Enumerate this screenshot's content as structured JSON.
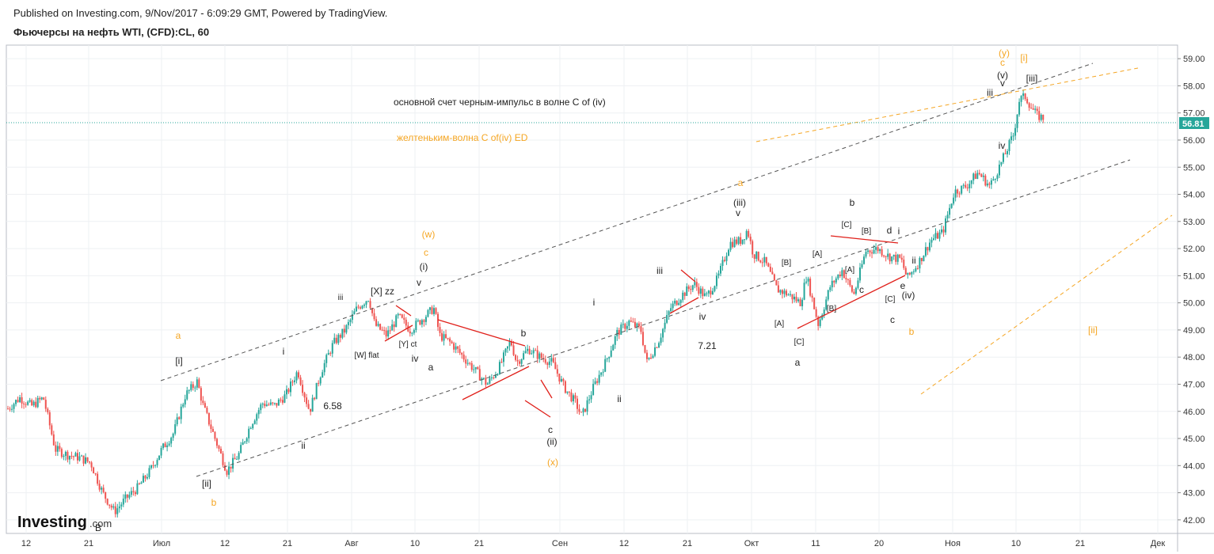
{
  "header": {
    "published": "Published on Investing.com, 9/Nov/2017 - 6:09:29 GMT, Powered by TradingView.",
    "symbol": "Фьючерсы на нефть WTI, (CFD):CL, 60"
  },
  "logo": {
    "word": "Investing",
    "suffix": ".com"
  },
  "colors": {
    "up_candle": "#26a69a",
    "down_candle": "#ef5350",
    "wave_orange": "#f5a623",
    "channel_dash": "#555555",
    "red_line": "#e0201a",
    "price_label_bg": "#26a69a",
    "grid": "#eef0f3"
  },
  "chart_data": {
    "type": "candlestick",
    "y_axis": {
      "min": 41.5,
      "max": 59.5,
      "ticks": [
        "42.00",
        "43.00",
        "44.00",
        "45.00",
        "46.00",
        "47.00",
        "48.00",
        "49.00",
        "50.00",
        "51.00",
        "52.00",
        "53.00",
        "54.00",
        "55.00",
        "56.00",
        "57.00",
        "58.00",
        "59.00"
      ]
    },
    "x_axis": {
      "ticks": [
        "12",
        "21",
        "Июл",
        "12",
        "21",
        "Авг",
        "10",
        "21",
        "Сен",
        "12",
        "21",
        "Окт",
        "11",
        "20",
        "Ноя",
        "10",
        "21",
        "Дек"
      ]
    },
    "last_price": "56.81",
    "price_path": [
      [
        0,
        46.1
      ],
      [
        2,
        46.5
      ],
      [
        4,
        46.2
      ],
      [
        6,
        46.5
      ],
      [
        8,
        44.6
      ],
      [
        10,
        44.4
      ],
      [
        12,
        44.3
      ],
      [
        14,
        44.1
      ],
      [
        16,
        43.0
      ],
      [
        18,
        42.3
      ],
      [
        20,
        42.8
      ],
      [
        22,
        43.2
      ],
      [
        24,
        43.8
      ],
      [
        26,
        44.6
      ],
      [
        28,
        45.2
      ],
      [
        30,
        46.6
      ],
      [
        32,
        47.1
      ],
      [
        33,
        46.2
      ],
      [
        35,
        45.0
      ],
      [
        37,
        43.8
      ],
      [
        39,
        44.4
      ],
      [
        41,
        45.5
      ],
      [
        43,
        46.3
      ],
      [
        45,
        46.2
      ],
      [
        47,
        46.6
      ],
      [
        49,
        47.5
      ],
      [
        50,
        46.7
      ],
      [
        51,
        46.0
      ],
      [
        53,
        47.5
      ],
      [
        55,
        48.5
      ],
      [
        57,
        49.0
      ],
      [
        59,
        49.8
      ],
      [
        61,
        50.2
      ],
      [
        62,
        49.2
      ],
      [
        64,
        48.8
      ],
      [
        66,
        49.5
      ],
      [
        68,
        49.0
      ],
      [
        70,
        49.4
      ],
      [
        72,
        49.8
      ],
      [
        73,
        48.8
      ],
      [
        75,
        48.5
      ],
      [
        77,
        48.0
      ],
      [
        79,
        47.5
      ],
      [
        81,
        47.0
      ],
      [
        83,
        47.6
      ],
      [
        85,
        48.6
      ],
      [
        86,
        47.8
      ],
      [
        88,
        48.3
      ],
      [
        90,
        48.0
      ],
      [
        92,
        47.8
      ],
      [
        94,
        46.9
      ],
      [
        96,
        46.3
      ],
      [
        97,
        45.8
      ],
      [
        99,
        46.9
      ],
      [
        101,
        47.8
      ],
      [
        103,
        48.9
      ],
      [
        105,
        49.3
      ],
      [
        107,
        49.0
      ],
      [
        108,
        47.8
      ],
      [
        110,
        48.6
      ],
      [
        112,
        49.8
      ],
      [
        114,
        50.3
      ],
      [
        116,
        50.7
      ],
      [
        118,
        50.2
      ],
      [
        120,
        50.9
      ],
      [
        122,
        52.2
      ],
      [
        124,
        52.3
      ],
      [
        125,
        52.7
      ],
      [
        126,
        51.8
      ],
      [
        128,
        51.5
      ],
      [
        130,
        50.5
      ],
      [
        132,
        50.3
      ],
      [
        134,
        50.0
      ],
      [
        135,
        51.0
      ],
      [
        137,
        49.2
      ],
      [
        139,
        50.6
      ],
      [
        141,
        51.2
      ],
      [
        143,
        50.3
      ],
      [
        145,
        51.9
      ],
      [
        147,
        52.0
      ],
      [
        149,
        51.7
      ],
      [
        151,
        51.6
      ],
      [
        152,
        50.9
      ],
      [
        154,
        51.5
      ],
      [
        156,
        52.3
      ],
      [
        158,
        52.6
      ],
      [
        160,
        54.1
      ],
      [
        162,
        54.3
      ],
      [
        164,
        54.8
      ],
      [
        166,
        54.3
      ],
      [
        168,
        55.2
      ],
      [
        170,
        56.2
      ],
      [
        171,
        57.5
      ],
      [
        172,
        57.6
      ],
      [
        173,
        57.2
      ],
      [
        174,
        56.9
      ],
      [
        175,
        56.81
      ]
    ]
  },
  "annotations": {
    "black": [
      {
        "t": "[i]"
      },
      {
        "t": "[ii]"
      },
      {
        "t": "B"
      },
      {
        "t": "i"
      },
      {
        "t": "ii"
      },
      {
        "t": "iii"
      },
      {
        "t": "iv"
      },
      {
        "t": "v"
      },
      {
        "t": "(i)"
      },
      {
        "t": "[X] zz"
      },
      {
        "t": "[W] flat"
      },
      {
        "t": "[Y] ct"
      },
      {
        "t": "a"
      },
      {
        "t": "b"
      },
      {
        "t": "c"
      },
      {
        "t": "(ii)"
      },
      {
        "t": "i"
      },
      {
        "t": "ii"
      },
      {
        "t": "iii"
      },
      {
        "t": "iv"
      },
      {
        "t": "(iii)"
      },
      {
        "t": "v"
      },
      {
        "t": "[B]"
      },
      {
        "t": "[A]"
      },
      {
        "t": "[C]"
      },
      {
        "t": "a"
      },
      {
        "t": "[A]"
      },
      {
        "t": "[B]"
      },
      {
        "t": "[C]"
      },
      {
        "t": "[A]"
      },
      {
        "t": "[B]"
      },
      {
        "t": "c"
      },
      {
        "t": "b"
      },
      {
        "t": "d"
      },
      {
        "t": "i"
      },
      {
        "t": "ii"
      },
      {
        "t": "e"
      },
      {
        "t": "[C]"
      },
      {
        "t": "(iv)"
      },
      {
        "t": "c"
      },
      {
        "t": "iii"
      },
      {
        "t": "(v)"
      },
      {
        "t": "v"
      },
      {
        "t": "iv"
      },
      {
        "t": "[iii]"
      },
      {
        "t": "6.58"
      },
      {
        "t": "7.21"
      }
    ],
    "orange": [
      {
        "t": "a"
      },
      {
        "t": "b"
      },
      {
        "t": "(w)"
      },
      {
        "t": "c"
      },
      {
        "t": "(x)"
      },
      {
        "t": "a"
      },
      {
        "t": "b"
      },
      {
        "t": "(y)"
      },
      {
        "t": "c"
      },
      {
        "t": "[i]"
      },
      {
        "t": "[ii]"
      }
    ],
    "main_text": "основной счет черным-импульс в волне C of (iv)",
    "orange_text": "желтеньким-волна C of(iv) ED"
  }
}
